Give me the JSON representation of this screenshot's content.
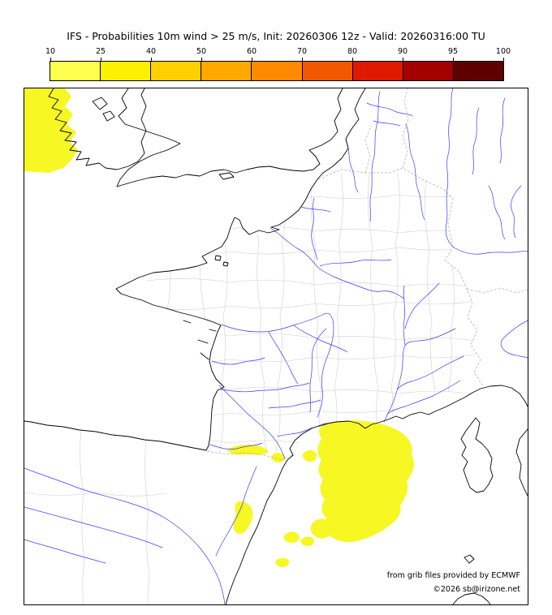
{
  "title": "IFS - Probabilities 10m wind > 25 m/s, Init: 20260306 12z - Valid: 20260316:00 TU",
  "colorbar": {
    "tick_labels": [
      "10",
      "25",
      "40",
      "50",
      "60",
      "70",
      "80",
      "90",
      "95",
      "100"
    ],
    "segment_colors": [
      "#ffff4d",
      "#fdf000",
      "#ffd000",
      "#ffa800",
      "#ff8a00",
      "#f25800",
      "#dd1a00",
      "#a30000",
      "#5e0000"
    ]
  },
  "map": {
    "credit_line1": "from grib files provided by ECMWF",
    "credit_line2": "©2026 sb@irizone.net"
  },
  "colors": {
    "probability_fill": "#f7f724",
    "river": "#3b3bff",
    "admin_boundary": "#cfcfcf",
    "country_border": "#aaaaaa",
    "coastline": "#000000"
  }
}
